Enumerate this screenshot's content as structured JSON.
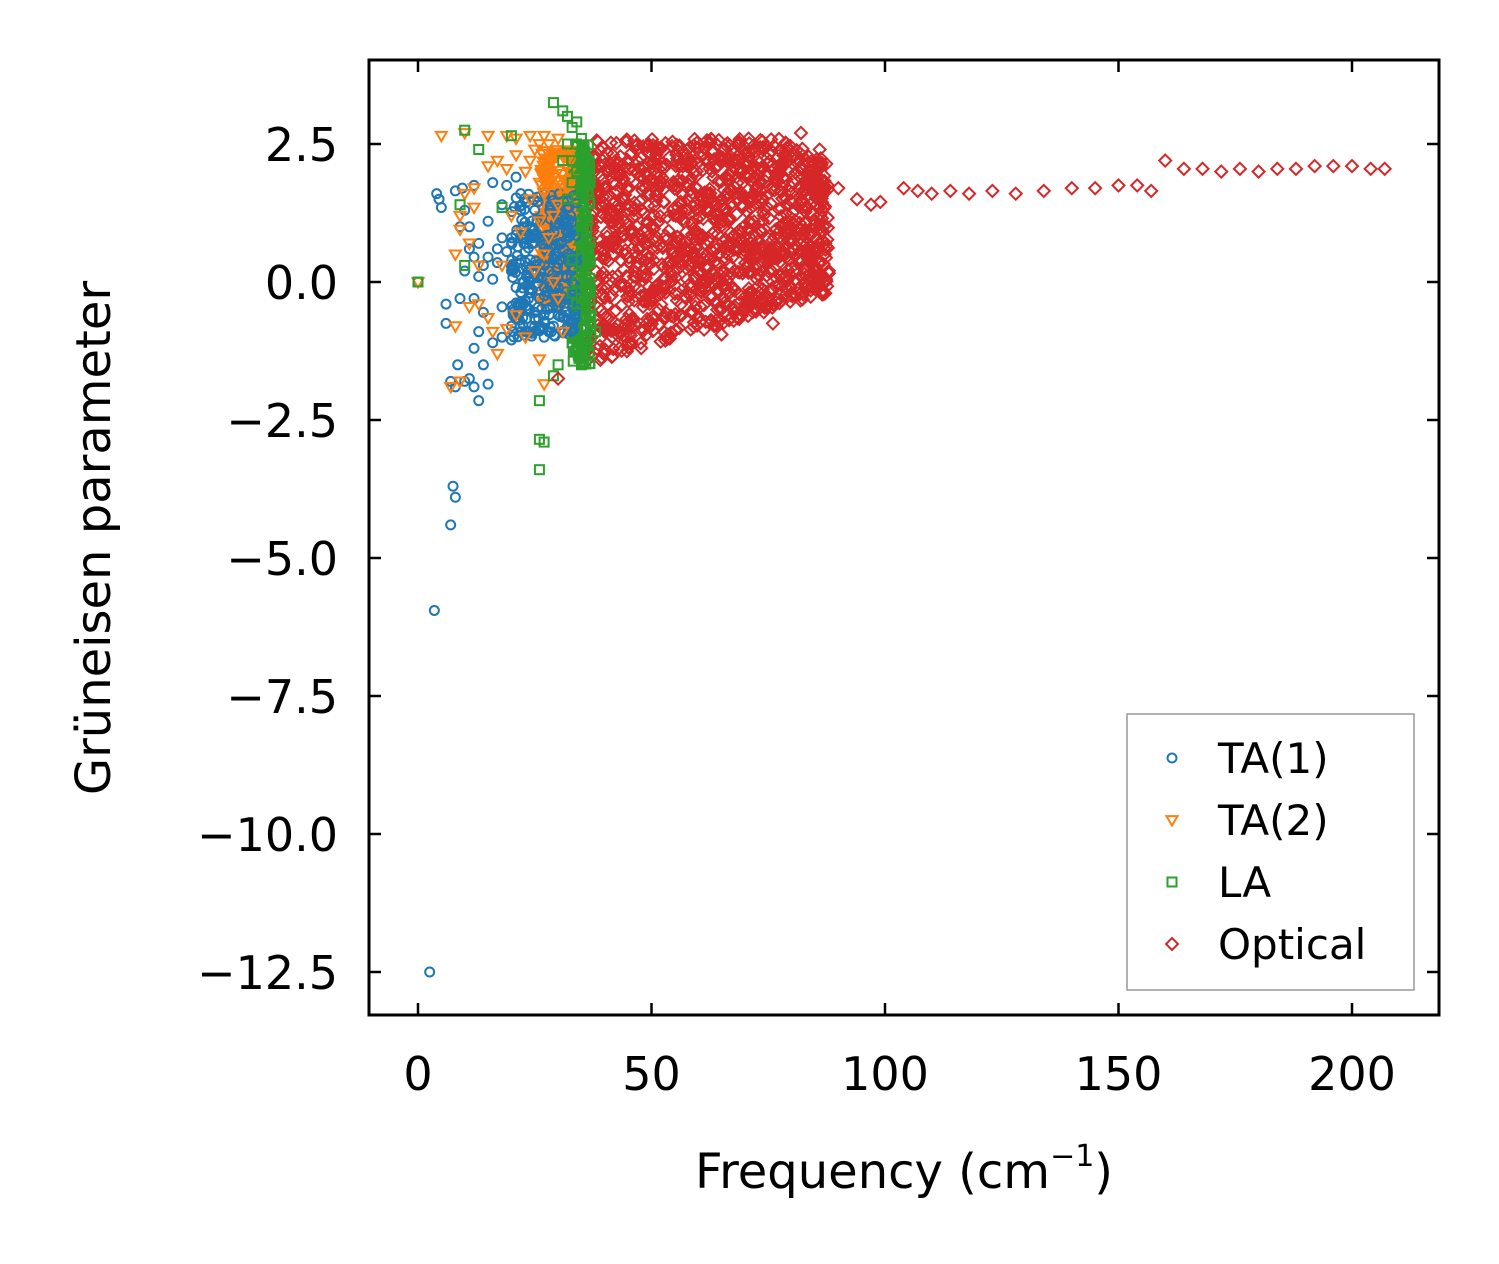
{
  "chart_data": {
    "type": "scatter",
    "xlabel": "Frequency (cm",
    "xlabel_sup": "−1",
    "xlabel_close": ")",
    "ylabel": "Grüneisen parameter",
    "xlim": [
      -10,
      219
    ],
    "ylim": [
      -13.3,
      4.0
    ],
    "xticks": [
      0,
      50,
      100,
      150,
      200
    ],
    "xtick_labels": [
      "0",
      "50",
      "100",
      "150",
      "200"
    ],
    "yticks": [
      2.5,
      0.0,
      -2.5,
      -5.0,
      -7.5,
      -10.0,
      -12.5
    ],
    "ytick_labels": [
      "2.5",
      "0.0",
      "−2.5",
      "−5.0",
      "−7.5",
      "−10.0",
      "−12.5"
    ],
    "legend_position": "lower-right",
    "series": [
      {
        "name": "TA(1)",
        "marker": "circle",
        "color": "#1f77b4",
        "points": [
          [
            0,
            0
          ],
          [
            2.5,
            -12.5
          ],
          [
            3.5,
            -5.95
          ],
          [
            7,
            -4.4
          ],
          [
            7.5,
            -3.7
          ],
          [
            8,
            -3.9
          ],
          [
            7,
            -1.8
          ],
          [
            8,
            -1.9
          ],
          [
            8.5,
            -1.5
          ],
          [
            10,
            -1.8
          ],
          [
            11,
            -1.75
          ],
          [
            12,
            -1.9
          ],
          [
            13,
            -2.15
          ],
          [
            15,
            -1.85
          ],
          [
            14,
            -1.5
          ],
          [
            12,
            -1.2
          ],
          [
            13,
            -0.9
          ],
          [
            16,
            -1.1
          ],
          [
            18,
            -1.0
          ],
          [
            20,
            -1.05
          ],
          [
            6,
            -0.75
          ],
          [
            9,
            -0.3
          ],
          [
            6,
            -0.4
          ],
          [
            12,
            -0.3
          ],
          [
            14,
            -0.55
          ],
          [
            18,
            -0.45
          ],
          [
            20,
            -0.8
          ],
          [
            22,
            -0.9
          ],
          [
            4,
            1.6
          ],
          [
            4.5,
            1.5
          ],
          [
            5,
            1.35
          ],
          [
            8,
            1.65
          ],
          [
            9.5,
            1.7
          ],
          [
            10,
            1.3
          ],
          [
            11,
            1.0
          ],
          [
            12,
            1.75
          ],
          [
            13,
            0.7
          ],
          [
            15,
            1.1
          ],
          [
            16,
            1.8
          ],
          [
            18,
            1.4
          ],
          [
            19,
            1.75
          ],
          [
            21,
            1.9
          ],
          [
            22,
            1.6
          ],
          [
            14,
            0.3
          ],
          [
            16,
            0.05
          ],
          [
            17,
            0.35
          ],
          [
            19,
            0.55
          ],
          [
            20,
            0.2
          ],
          [
            21,
            -0.1
          ],
          [
            22,
            0.4
          ],
          [
            23,
            0.8
          ],
          [
            24,
            0.0
          ],
          [
            24,
            -0.5
          ],
          [
            25,
            0.3
          ],
          [
            25,
            -0.8
          ],
          [
            26,
            0.1
          ],
          [
            26,
            -0.3
          ],
          [
            27,
            0.6
          ],
          [
            27,
            -0.6
          ],
          [
            28,
            0.2
          ],
          [
            28,
            -0.9
          ],
          [
            29,
            0.4
          ],
          [
            29,
            -0.2
          ],
          [
            30,
            -0.6
          ],
          [
            30,
            0.7
          ],
          [
            31,
            -0.3
          ],
          [
            31,
            0.1
          ],
          [
            32,
            -0.7
          ],
          [
            32,
            0.5
          ],
          [
            33,
            0.0
          ],
          [
            24,
            1.0
          ],
          [
            25,
            1.3
          ],
          [
            22,
            0.95
          ],
          [
            23,
            -0.35
          ],
          [
            18,
            0.8
          ],
          [
            17,
            0.6
          ],
          [
            15,
            0.45
          ],
          [
            13,
            0.1
          ],
          [
            11,
            0.6
          ],
          [
            10,
            0.2
          ],
          [
            9,
            1.0
          ],
          [
            12,
            0.45
          ],
          [
            24,
            -0.2
          ],
          [
            26,
            0.8
          ],
          [
            28,
            0.45
          ],
          [
            30,
            -0.1
          ],
          [
            27,
            -1.0
          ],
          [
            29,
            -0.8
          ],
          [
            25,
            -0.55
          ],
          [
            23,
            0.55
          ]
        ]
      },
      {
        "name": "TA(2)",
        "marker": "triangle",
        "color": "#ff7f0e",
        "points": [
          [
            0,
            0
          ],
          [
            5,
            2.65
          ],
          [
            10,
            2.7
          ],
          [
            15,
            2.65
          ],
          [
            19,
            2.65
          ],
          [
            21,
            2.6
          ],
          [
            24,
            2.65
          ],
          [
            27,
            2.65
          ],
          [
            30,
            2.6
          ],
          [
            12,
            1.7
          ],
          [
            15,
            2.1
          ],
          [
            17,
            2.2
          ],
          [
            19,
            2.05
          ],
          [
            21,
            2.3
          ],
          [
            23,
            2.0
          ],
          [
            25,
            2.4
          ],
          [
            26,
            1.8
          ],
          [
            28,
            2.2
          ],
          [
            29,
            1.9
          ],
          [
            31,
            2.3
          ],
          [
            9,
            1.2
          ],
          [
            10,
            1.6
          ],
          [
            12,
            1.35
          ],
          [
            9,
            0.95
          ],
          [
            11,
            0.7
          ],
          [
            8,
            0.5
          ],
          [
            13,
            0.3
          ],
          [
            8,
            -0.8
          ],
          [
            11,
            -0.45
          ],
          [
            13,
            -0.4
          ],
          [
            15,
            -0.65
          ],
          [
            16,
            -0.9
          ],
          [
            17,
            -1.3
          ],
          [
            19,
            -0.85
          ],
          [
            21,
            -0.6
          ],
          [
            23,
            -1.0
          ],
          [
            7,
            -1.9
          ],
          [
            9,
            -1.8
          ],
          [
            26,
            -1.4
          ],
          [
            27,
            -1.85
          ],
          [
            24,
            1.5
          ],
          [
            26,
            1.1
          ],
          [
            28,
            0.8
          ],
          [
            30,
            1.4
          ],
          [
            31,
            1.7
          ],
          [
            25,
            0.2
          ],
          [
            27,
            0.5
          ],
          [
            29,
            0.0
          ],
          [
            30,
            -0.3
          ],
          [
            31,
            -0.9
          ],
          [
            22,
            0.9
          ],
          [
            20,
            1.2
          ],
          [
            18,
            0.3
          ],
          [
            24,
            2.2
          ],
          [
            26,
            2.5
          ],
          [
            28,
            2.5
          ],
          [
            29,
            1.2
          ],
          [
            27,
            1.6
          ]
        ]
      },
      {
        "name": "LA",
        "marker": "square",
        "color": "#2ca02c",
        "points": [
          [
            0,
            0
          ],
          [
            10,
            2.75
          ],
          [
            13,
            2.4
          ],
          [
            9,
            1.4
          ],
          [
            10,
            0.3
          ],
          [
            18,
            1.35
          ],
          [
            20,
            2.65
          ],
          [
            26,
            -2.15
          ],
          [
            26,
            -2.85
          ],
          [
            27,
            -2.9
          ],
          [
            26,
            -3.4
          ],
          [
            29,
            -1.7
          ],
          [
            30,
            -1.5
          ],
          [
            29,
            3.25
          ],
          [
            31,
            3.1
          ],
          [
            32,
            3.0
          ],
          [
            33,
            2.8
          ],
          [
            34,
            2.5
          ],
          [
            35,
            2.2
          ],
          [
            33,
            1.8
          ],
          [
            34,
            1.5
          ],
          [
            35,
            1.0
          ],
          [
            33,
            2.2
          ],
          [
            35,
            0.6
          ],
          [
            35,
            0.2
          ],
          [
            35,
            -0.3
          ],
          [
            36,
            -0.6
          ],
          [
            37,
            -0.8
          ],
          [
            38,
            -0.9
          ],
          [
            37,
            -0.6
          ],
          [
            36,
            -1.0
          ],
          [
            34,
            -1.2
          ],
          [
            35,
            -1.5
          ],
          [
            33,
            -1.1
          ],
          [
            32,
            1.5
          ],
          [
            34,
            2.0
          ],
          [
            35,
            1.6
          ],
          [
            36,
            0.8
          ],
          [
            35,
            -1.3
          ],
          [
            33,
            0.4
          ],
          [
            34,
            -0.4
          ],
          [
            32,
            2.5
          ],
          [
            31,
            2.2
          ],
          [
            34,
            2.9
          ],
          [
            35,
            2.6
          ],
          [
            36,
            1.2
          ],
          [
            34,
            0.0
          ],
          [
            33,
            -0.2
          ],
          [
            36,
            -0.2
          ],
          [
            37,
            -1.0
          ]
        ]
      },
      {
        "name": "Optical",
        "marker": "diamond",
        "color": "#d62728",
        "points": [
          [
            30,
            -1.75
          ],
          [
            76,
            -0.75
          ],
          [
            65,
            -0.95
          ],
          [
            82,
            2.7
          ],
          [
            86,
            2.4
          ],
          [
            90,
            1.7
          ],
          [
            94,
            1.5
          ],
          [
            97,
            1.4
          ],
          [
            99,
            1.45
          ],
          [
            104,
            1.7
          ],
          [
            107,
            1.65
          ],
          [
            110,
            1.6
          ],
          [
            114,
            1.65
          ],
          [
            118,
            1.6
          ],
          [
            123,
            1.65
          ],
          [
            128,
            1.6
          ],
          [
            134,
            1.65
          ],
          [
            140,
            1.7
          ],
          [
            145,
            1.7
          ],
          [
            150,
            1.75
          ],
          [
            154,
            1.75
          ],
          [
            157,
            1.65
          ],
          [
            160,
            2.2
          ],
          [
            164,
            2.05
          ],
          [
            168,
            2.05
          ],
          [
            172,
            2.0
          ],
          [
            176,
            2.05
          ],
          [
            180,
            2.0
          ],
          [
            184,
            2.05
          ],
          [
            188,
            2.05
          ],
          [
            192,
            2.1
          ],
          [
            196,
            2.1
          ],
          [
            200,
            2.1
          ],
          [
            204,
            2.05
          ],
          [
            207,
            2.05
          ]
        ]
      }
    ],
    "bands": [
      {
        "series": "Optical",
        "x": [
          36,
          88
        ],
        "y": [
          -1.5,
          2.7
        ],
        "color": "#d62728"
      },
      {
        "series": "LA",
        "x": [
          33,
          37
        ],
        "y": [
          -1.5,
          2.5
        ],
        "color": "#2ca02c"
      },
      {
        "series": "TA(2)",
        "x": [
          26,
          33
        ],
        "y": [
          -0.5,
          2.4
        ],
        "color": "#ff7f0e"
      },
      {
        "series": "TA(1)",
        "x": [
          20,
          34
        ],
        "y": [
          -1.0,
          1.6
        ],
        "color": "#1f77b4"
      }
    ]
  }
}
